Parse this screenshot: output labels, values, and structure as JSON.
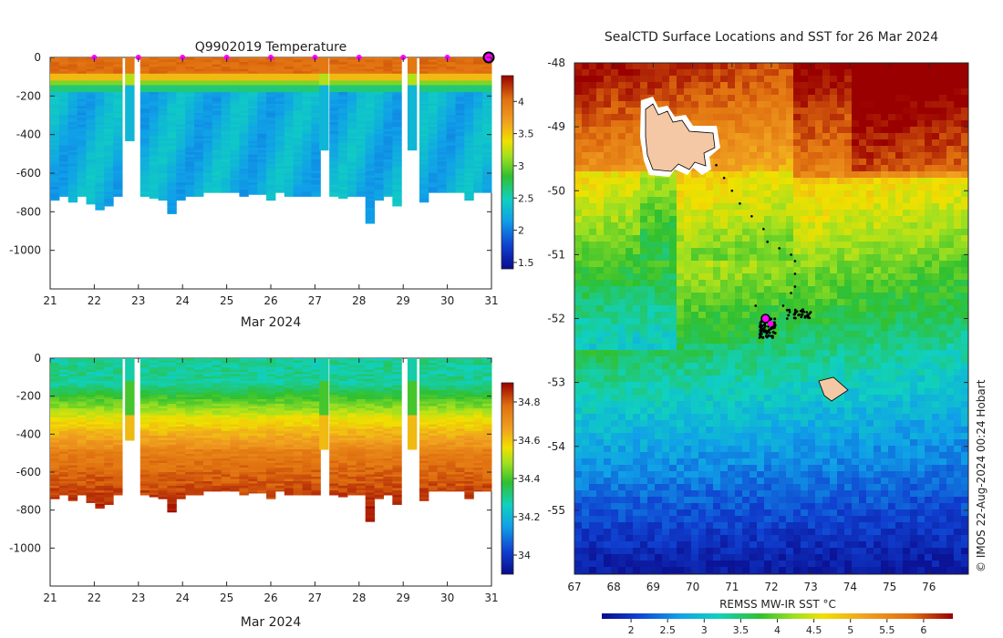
{
  "chart_data": [
    {
      "type": "heatmap",
      "title": "Q9902019  Temperature",
      "xlabel": "Mar 2024",
      "x_ticks": [
        "21",
        "22",
        "23",
        "24",
        "25",
        "26",
        "27",
        "28",
        "29",
        "30",
        "31"
      ],
      "xlim": [
        21,
        31
      ],
      "y_ticks": [
        0,
        -200,
        -400,
        -600,
        -800,
        -1000
      ],
      "ylim": [
        -1200,
        0
      ],
      "colorbar": {
        "ticks": [
          1.5,
          2,
          2.5,
          3,
          3.5,
          4
        ],
        "range": [
          1.4,
          4.4
        ]
      },
      "surface_markers_x": [
        22,
        23,
        24,
        25,
        26,
        27,
        28,
        29,
        30
      ],
      "highlight_marker_x": 31,
      "profile_bottom_depths_m": [
        -740,
        -720,
        -750,
        -720,
        -760,
        -790,
        -770,
        -720,
        -730,
        -740,
        -720,
        -730,
        -740,
        -810,
        -740,
        -720,
        -720,
        -700,
        -700,
        -700,
        -700,
        -720,
        -710,
        -710,
        -740,
        -700,
        -720,
        -720,
        -720,
        -720,
        -700,
        -720,
        -730,
        -720,
        -720,
        -860,
        -740,
        -720,
        -770,
        -780,
        -700,
        -750,
        -700,
        -700,
        -700,
        -700,
        -740,
        -700,
        -700
      ],
      "gap_days": [
        22.8,
        27.2,
        29.2
      ]
    },
    {
      "type": "heatmap",
      "title": "",
      "xlabel": "Mar 2024",
      "x_ticks": [
        "21",
        "22",
        "23",
        "24",
        "25",
        "26",
        "27",
        "28",
        "29",
        "30",
        "31"
      ],
      "xlim": [
        21,
        31
      ],
      "y_ticks": [
        0,
        -200,
        -400,
        -600,
        -800,
        -1000
      ],
      "ylim": [
        -1200,
        0
      ],
      "colorbar": {
        "ticks": [
          34,
          34.2,
          34.4,
          34.6,
          34.8
        ],
        "range": [
          33.9,
          34.9
        ]
      }
    },
    {
      "type": "heatmap",
      "title": "SealCTD Surface Locations and SST for 26 Mar 2024",
      "x_ticks": [
        "67",
        "68",
        "69",
        "70",
        "71",
        "72",
        "73",
        "74",
        "75",
        "76"
      ],
      "xlim": [
        67,
        77
      ],
      "y_ticks": [
        "-48",
        "-49",
        "-50",
        "-51",
        "-52",
        "-53",
        "-54",
        "-55"
      ],
      "ylim": [
        -56,
        -48
      ],
      "colorbar": {
        "label": "REMSS MW-IR SST °C",
        "ticks": [
          "2",
          "2.5",
          "3",
          "3.5",
          "4",
          "4.5",
          "5",
          "5.5",
          "6"
        ],
        "range": [
          1.6,
          6.4
        ]
      },
      "track_points_lonlat": [
        [
          70.6,
          -49.6
        ],
        [
          70.8,
          -49.8
        ],
        [
          71.0,
          -50.0
        ],
        [
          71.2,
          -50.2
        ],
        [
          71.5,
          -50.4
        ],
        [
          71.8,
          -50.6
        ],
        [
          71.9,
          -50.8
        ],
        [
          72.2,
          -50.9
        ],
        [
          72.5,
          -51.0
        ],
        [
          72.6,
          -51.1
        ],
        [
          72.6,
          -51.3
        ],
        [
          72.6,
          -51.5
        ],
        [
          72.5,
          -51.6
        ],
        [
          72.3,
          -51.8
        ],
        [
          72.6,
          -51.9
        ],
        [
          72.9,
          -51.9
        ],
        [
          72.4,
          -52.0
        ],
        [
          72.1,
          -52.1
        ],
        [
          71.8,
          -52.2
        ],
        [
          71.6,
          -51.8
        ],
        [
          71.7,
          -52.3
        ]
      ],
      "current_location_lonlat": [
        71.85,
        -52.0
      ],
      "secondary_location_lonlat": [
        71.98,
        -52.08
      ]
    }
  ],
  "copyright": "© IMOS 22-Aug-2024 00:24 Hobart"
}
